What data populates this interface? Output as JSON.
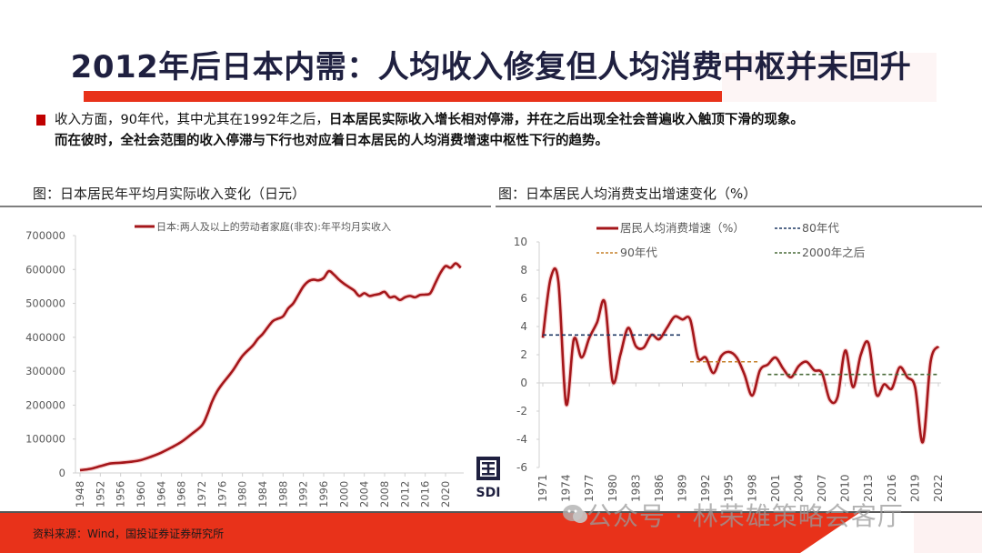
{
  "slide": {
    "title": "2012年后日本内需：人均收入修复但人均消费中枢并未回升",
    "bullet": {
      "plain": "收入方面，90年代，其中尤其在1992年之后，",
      "bold1": "日本居民实际收入增长相对停滞，并在之后出现全社会普遍收入触顶下滑的现象。",
      "bold2": "而在彼时，全社会范围的收入停滞与下行也对应着日本居民的人均消费增速中枢性下行的趋势。"
    },
    "source": "资料来源：Wind，国投证券证券研究所",
    "logo_text": "SDI",
    "watermark": "公众号 · 林荣雄策略会客厅",
    "colors": {
      "accent_red": "#e8321a",
      "series_red": "#a4161a",
      "title_navy": "#1f2040"
    }
  },
  "chart_data": [
    {
      "type": "line",
      "title": "图：日本居民年平均月实际收入变化（日元）",
      "xlabel": "",
      "ylabel": "",
      "ylim": [
        0,
        700000
      ],
      "yticks": [
        "0",
        "100000",
        "200000",
        "300000",
        "400000",
        "500000",
        "600000",
        "700000"
      ],
      "xticks": [
        "1948",
        "1952",
        "1956",
        "1960",
        "1964",
        "1968",
        "1972",
        "1976",
        "1980",
        "1984",
        "1988",
        "1992",
        "1996",
        "2000",
        "2004",
        "2008",
        "2012",
        "2016",
        "2020"
      ],
      "legend": "日本:两人及以上的劳动者家庭(非农):年平均月实收入",
      "legend_position": "top",
      "grid": false,
      "series": [
        {
          "name": "日本:两人及以上的劳动者家庭(非农):年平均月实收入",
          "color": "#a4161a",
          "x": [
            1948,
            1950,
            1952,
            1954,
            1956,
            1958,
            1960,
            1962,
            1964,
            1966,
            1968,
            1970,
            1972,
            1973,
            1974,
            1975,
            1976,
            1978,
            1980,
            1982,
            1983,
            1984,
            1985,
            1986,
            1987,
            1988,
            1989,
            1990,
            1991,
            1992,
            1993,
            1994,
            1995,
            1996,
            1997,
            1998,
            1999,
            2000,
            2001,
            2002,
            2003,
            2004,
            2005,
            2006,
            2007,
            2008,
            2009,
            2010,
            2011,
            2012,
            2013,
            2014,
            2015,
            2016,
            2017,
            2018,
            2019,
            2020,
            2021,
            2022,
            2023
          ],
          "values": [
            8000,
            12000,
            20000,
            28000,
            30000,
            33000,
            38000,
            48000,
            60000,
            75000,
            92000,
            115000,
            140000,
            170000,
            210000,
            240000,
            262000,
            300000,
            345000,
            375000,
            395000,
            410000,
            430000,
            448000,
            455000,
            462000,
            485000,
            500000,
            525000,
            550000,
            565000,
            570000,
            568000,
            575000,
            595000,
            585000,
            570000,
            558000,
            548000,
            538000,
            522000,
            530000,
            522000,
            525000,
            528000,
            534000,
            518000,
            520000,
            510000,
            518000,
            522000,
            518000,
            525000,
            526000,
            530000,
            560000,
            590000,
            610000,
            605000,
            618000,
            605000
          ]
        }
      ]
    },
    {
      "type": "line",
      "title": "图：日本居民人均消费支出增速变化（%）",
      "xlabel": "",
      "ylabel": "",
      "ylim": [
        -6,
        10
      ],
      "yticks": [
        "-6",
        "-4",
        "-2",
        "0",
        "2",
        "4",
        "6",
        "8",
        "10"
      ],
      "xticks": [
        "1971",
        "1974",
        "1977",
        "1980",
        "1983",
        "1986",
        "1989",
        "1992",
        "1995",
        "1998",
        "2001",
        "2004",
        "2007",
        "2010",
        "2013",
        "2016",
        "2019",
        "2022"
      ],
      "legend_position": "top",
      "grid": false,
      "series": [
        {
          "name": "居民人均消费增速（%）",
          "color": "#a4161a",
          "x": [
            1971,
            1972,
            1973,
            1974,
            1975,
            1976,
            1977,
            1978,
            1979,
            1980,
            1981,
            1982,
            1983,
            1984,
            1985,
            1986,
            1987,
            1988,
            1989,
            1990,
            1991,
            1992,
            1993,
            1994,
            1995,
            1996,
            1997,
            1998,
            1999,
            2000,
            2001,
            2002,
            2003,
            2004,
            2005,
            2006,
            2007,
            2008,
            2009,
            2010,
            2011,
            2012,
            2013,
            2014,
            2015,
            2016,
            2017,
            2018,
            2019,
            2020,
            2021,
            2022
          ],
          "values": [
            3.2,
            7.4,
            7.2,
            -1.5,
            3.1,
            1.8,
            3.2,
            4.3,
            5.7,
            0.1,
            2.0,
            3.9,
            2.6,
            2.5,
            3.4,
            3.1,
            3.9,
            4.7,
            4.5,
            4.5,
            1.8,
            1.8,
            0.7,
            1.9,
            2.2,
            1.8,
            0.6,
            -0.9,
            0.9,
            1.3,
            1.8,
            1.0,
            0.4,
            1.2,
            1.5,
            0.9,
            0.7,
            -1.2,
            -1.0,
            2.3,
            -0.3,
            2.0,
            2.8,
            -0.8,
            -0.1,
            -0.4,
            1.1,
            0.4,
            -0.3,
            -4.2,
            1.5,
            2.6
          ]
        },
        {
          "name": "80年代",
          "color": "#1f3864",
          "dashed": true,
          "x": [
            1971,
            1989
          ],
          "values": [
            3.4,
            3.4
          ]
        },
        {
          "name": "90年代",
          "color": "#c5802a",
          "dashed": true,
          "x": [
            1990,
            1999
          ],
          "values": [
            1.5,
            1.5
          ]
        },
        {
          "name": "2000年之后",
          "color": "#4a6b3a",
          "dashed": true,
          "x": [
            2000,
            2022
          ],
          "values": [
            0.6,
            0.6
          ]
        }
      ]
    }
  ]
}
